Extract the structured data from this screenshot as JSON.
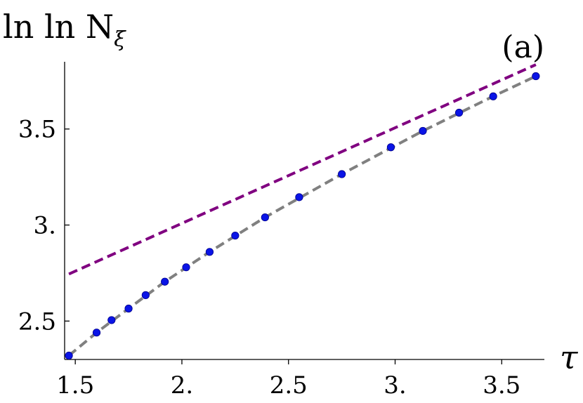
{
  "chart_data": {
    "type": "scatter",
    "ylabel": "ln ln N",
    "ylabel_subscript": "ξ",
    "xlabel": "τ",
    "panel_label": "(a)",
    "xlim": [
      1.45,
      3.7
    ],
    "ylim": [
      2.3,
      3.85
    ],
    "x_ticks": [
      1.5,
      2.0,
      2.5,
      3.0,
      3.5
    ],
    "x_tick_labels": [
      "1.5",
      "2.",
      "2.5",
      "3.",
      "3.5"
    ],
    "y_ticks": [
      2.5,
      3.0,
      3.5
    ],
    "y_tick_labels": [
      "2.5",
      "3.",
      "3.5"
    ],
    "grid": false,
    "series": [
      {
        "kind": "points",
        "color": "#0a14e6",
        "x": [
          1.47,
          1.6,
          1.67,
          1.75,
          1.83,
          1.92,
          2.02,
          2.13,
          2.25,
          2.39,
          2.55,
          2.75,
          2.98,
          3.13,
          3.3,
          3.46,
          3.66
        ],
        "y": [
          2.32,
          2.44,
          2.505,
          2.565,
          2.635,
          2.705,
          2.78,
          2.86,
          2.945,
          3.04,
          3.145,
          3.265,
          3.405,
          3.49,
          3.585,
          3.67,
          3.775
        ]
      },
      {
        "kind": "dashed-line",
        "color": "#808080",
        "x": [
          1.47,
          1.6,
          1.75,
          1.92,
          2.13,
          2.39,
          2.75,
          3.13,
          3.46,
          3.66
        ],
        "y": [
          2.32,
          2.44,
          2.565,
          2.705,
          2.86,
          3.04,
          3.265,
          3.49,
          3.67,
          3.775
        ]
      },
      {
        "kind": "dashed-line",
        "color": "#800080",
        "x": [
          1.47,
          3.66
        ],
        "y": [
          2.745,
          3.835
        ]
      }
    ]
  }
}
